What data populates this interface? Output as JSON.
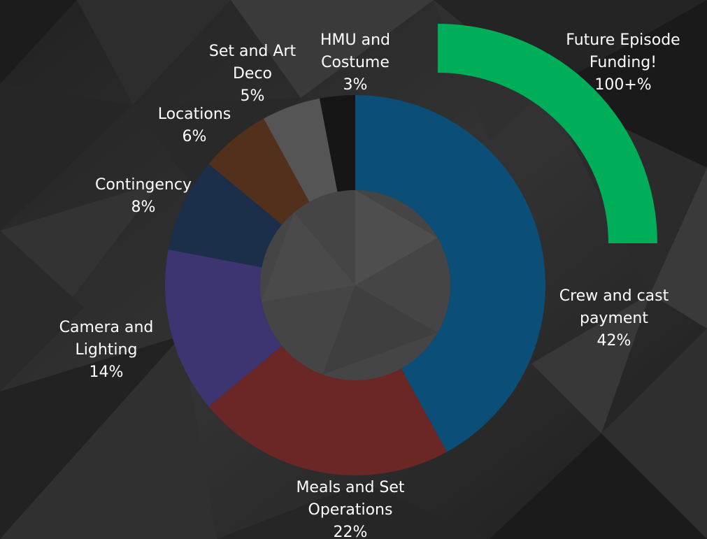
{
  "chart_data": {
    "type": "pie",
    "variant": "donut",
    "title": "",
    "slices": [
      {
        "name": "Crew and cast payment",
        "label_lines": [
          "Crew and cast",
          "payment"
        ],
        "value": 42,
        "value_label": "42%",
        "color": "#0b4f78"
      },
      {
        "name": "Meals and Set Operations",
        "label_lines": [
          "Meals and Set",
          "Operations"
        ],
        "value": 22,
        "value_label": "22%",
        "color": "#6b2626"
      },
      {
        "name": "Camera and Lighting",
        "label_lines": [
          "Camera and",
          "Lighting"
        ],
        "value": 14,
        "value_label": "14%",
        "color": "#3c3572"
      },
      {
        "name": "Contingency",
        "label_lines": [
          "Contingency"
        ],
        "value": 8,
        "value_label": "8%",
        "color": "#1b2f4a"
      },
      {
        "name": "Locations",
        "label_lines": [
          "Locations"
        ],
        "value": 6,
        "value_label": "6%",
        "color": "#53301c"
      },
      {
        "name": "Set and Art Deco",
        "label_lines": [
          "Set and Art",
          "Deco"
        ],
        "value": 5,
        "value_label": "5%",
        "color": "#555555"
      },
      {
        "name": "HMU and Costume",
        "label_lines": [
          "HMU and",
          "Costume"
        ],
        "value": 3,
        "value_label": "3%",
        "color": "#161616"
      }
    ],
    "extra_arc": {
      "name": "Future Episode Funding!",
      "label_lines": [
        "Future Episode",
        "Funding!"
      ],
      "value_label": "100+%",
      "color": "#00ad59"
    },
    "label_color": "#ffffff"
  }
}
